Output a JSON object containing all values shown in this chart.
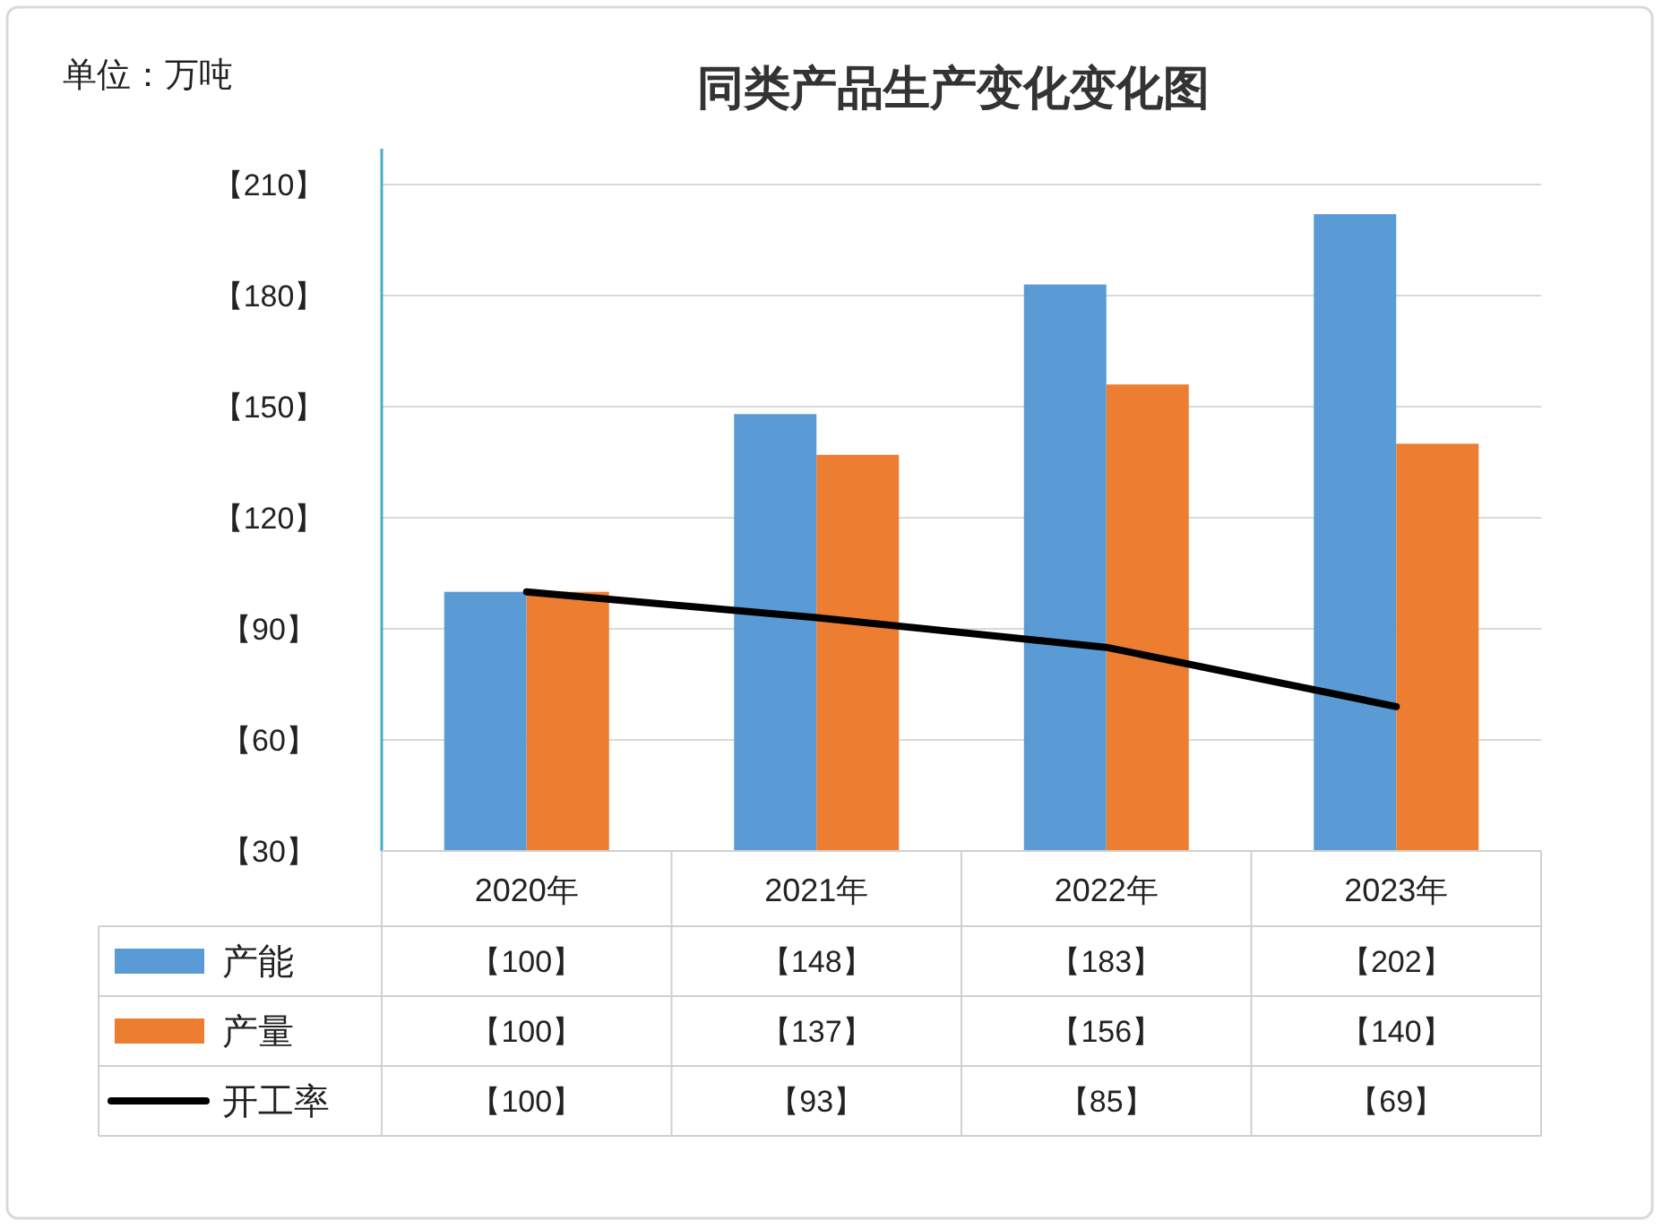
{
  "chart_data": {
    "type": "bar",
    "title": "同类产品生产变化变化图",
    "annotations": [
      "单位：万吨"
    ],
    "categories": [
      "2020年",
      "2021年",
      "2022年",
      "2023年"
    ],
    "series": [
      {
        "name": "产能",
        "color": "#5b9bd5",
        "values": [
          100,
          148,
          183,
          202
        ],
        "value_labels": [
          "【100】",
          "【148】",
          "【183】",
          "【202】"
        ]
      },
      {
        "name": "产量",
        "color": "#ed7d31",
        "values": [
          100,
          137,
          156,
          140
        ],
        "value_labels": [
          "【100】",
          "【137】",
          "【156】",
          "【140】"
        ]
      },
      {
        "name": "开工率",
        "type": "line",
        "color": "#000000",
        "values": [
          100,
          93,
          85,
          69
        ],
        "value_labels": [
          "【100】",
          "【93】",
          "【85】",
          "【69】"
        ]
      }
    ],
    "ylim": [
      30,
      210
    ],
    "yticks": [
      {
        "value": 30,
        "label": "【30】"
      },
      {
        "value": 60,
        "label": "【60】"
      },
      {
        "value": 90,
        "label": "【90】"
      },
      {
        "value": 120,
        "label": "【120】"
      },
      {
        "value": 150,
        "label": "【150】"
      },
      {
        "value": 180,
        "label": "【180】"
      },
      {
        "value": 210,
        "label": "【210】"
      }
    ],
    "grid": "y",
    "legend": "bottom",
    "marker": "none",
    "line_style": "solid"
  }
}
